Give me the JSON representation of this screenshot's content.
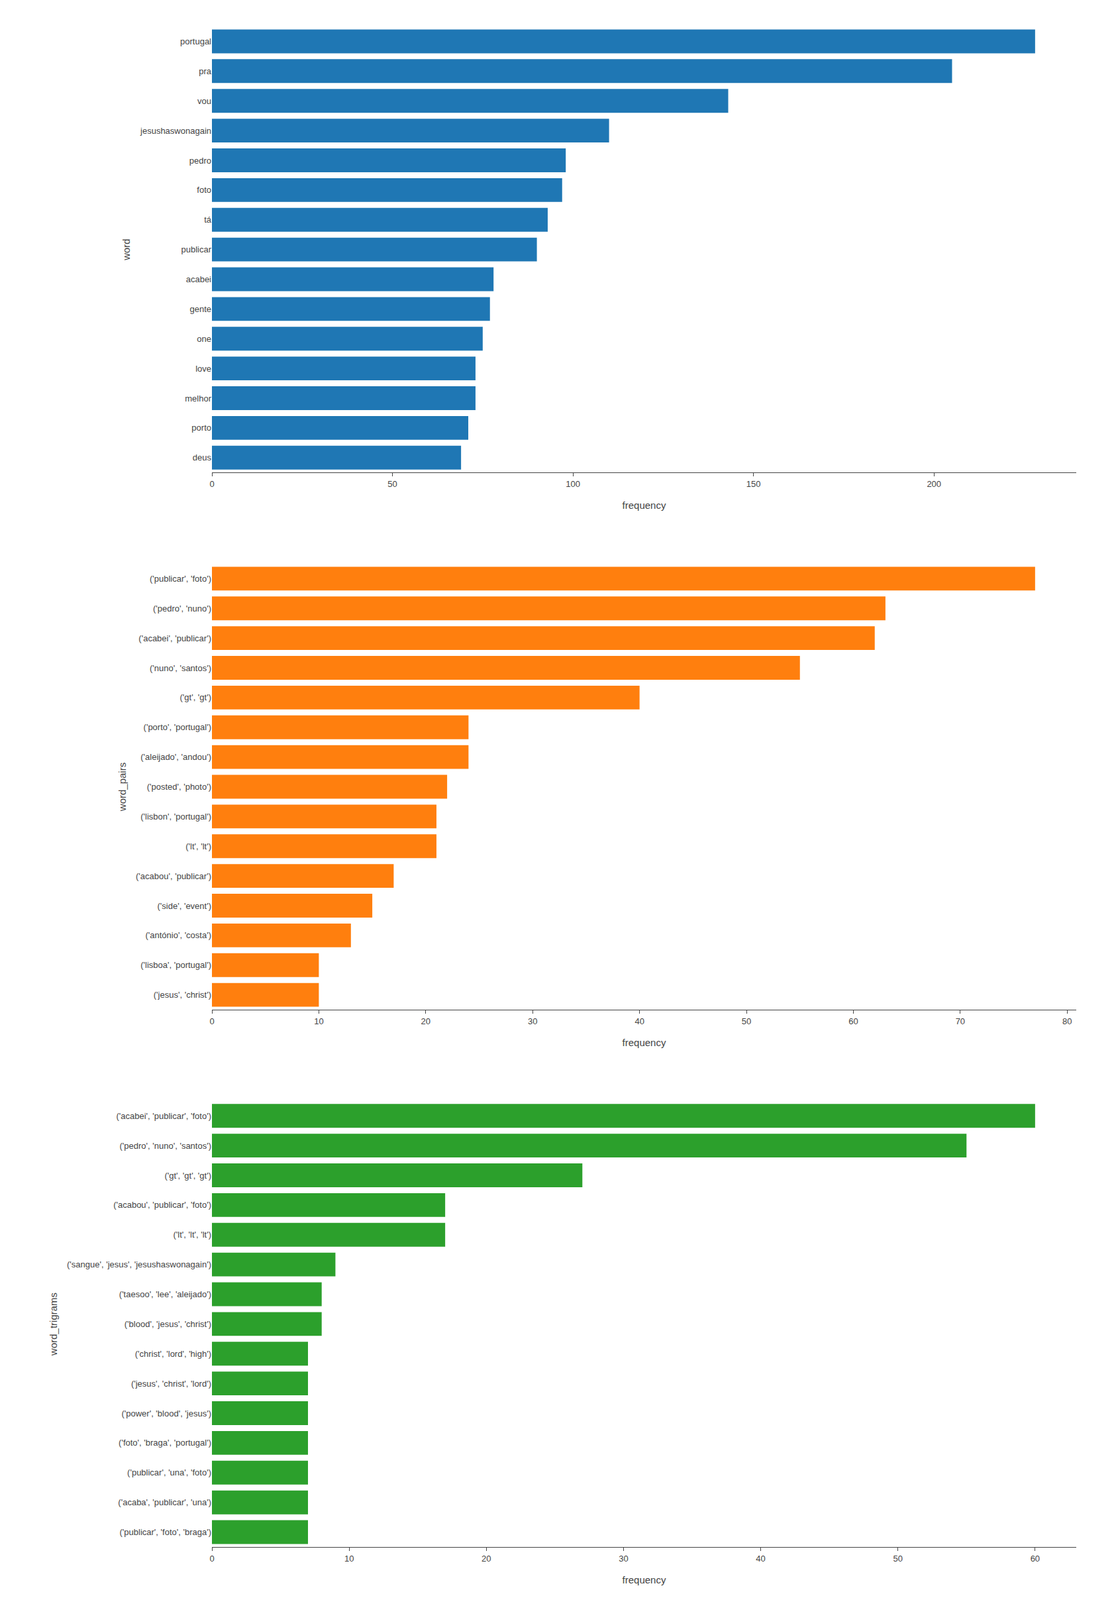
{
  "chart_data": [
    {
      "type": "bar",
      "orientation": "horizontal",
      "xlabel": "frequency",
      "ylabel": "word",
      "categories": [
        "portugal",
        "pra",
        "vou",
        "jesushaswonagain",
        "pedro",
        "foto",
        "tá",
        "publicar",
        "acabei",
        "gente",
        "one",
        "love",
        "melhor",
        "porto",
        "deus"
      ],
      "values": [
        228,
        205,
        143,
        110,
        98,
        97,
        93,
        90,
        78,
        77,
        75,
        73,
        73,
        71,
        69
      ],
      "xlim": [
        0,
        239.4
      ],
      "xticks": [
        0,
        50,
        100,
        150,
        200
      ],
      "grid": false
    },
    {
      "type": "bar",
      "orientation": "horizontal",
      "xlabel": "frequency",
      "ylabel": "word_pairs",
      "categories": [
        "('publicar', 'foto')",
        "('pedro', 'nuno')",
        "('acabei', 'publicar')",
        "('nuno', 'santos')",
        "('gt', 'gt')",
        "('porto', 'portugal')",
        "('aleijado', 'andou')",
        "('posted', 'photo')",
        "('lisbon', 'portugal')",
        "('lt', 'lt')",
        "('acabou', 'publicar')",
        "('side', 'event')",
        "('antónio', 'costa')",
        "('lisboa', 'portugal')",
        "('jesus', 'christ')"
      ],
      "values": [
        77,
        63,
        62,
        55,
        40,
        24,
        24,
        22,
        21,
        21,
        17,
        15,
        13,
        10,
        10
      ],
      "xlim": [
        0,
        80.85
      ],
      "xticks": [
        0,
        10,
        20,
        30,
        40,
        50,
        60,
        70,
        80
      ],
      "grid": false
    },
    {
      "type": "bar",
      "orientation": "horizontal",
      "xlabel": "frequency",
      "ylabel": "word_trigrams",
      "categories": [
        "('acabei', 'publicar', 'foto')",
        "('pedro', 'nuno', 'santos')",
        "('gt', 'gt', 'gt')",
        "('acabou', 'publicar', 'foto')",
        "('lt', 'lt', 'lt')",
        "('sangue', 'jesus', 'jesushaswonagain')",
        "('taesoo', 'lee', 'aleijado')",
        "('blood', 'jesus', 'christ')",
        "('christ', 'lord', 'high')",
        "('jesus', 'christ', 'lord')",
        "('power', 'blood', 'jesus')",
        "('foto', 'braga', 'portugal')",
        "('publicar', 'una', 'foto')",
        "('acaba', 'publicar', 'una')",
        "('publicar', 'foto', 'braga')"
      ],
      "values": [
        60,
        55,
        27,
        17,
        17,
        9,
        8,
        8,
        7,
        7,
        7,
        7,
        7,
        7,
        7
      ],
      "xlim": [
        0,
        63
      ],
      "xticks": [
        0,
        10,
        20,
        30,
        40,
        50,
        60
      ],
      "grid": false
    }
  ]
}
